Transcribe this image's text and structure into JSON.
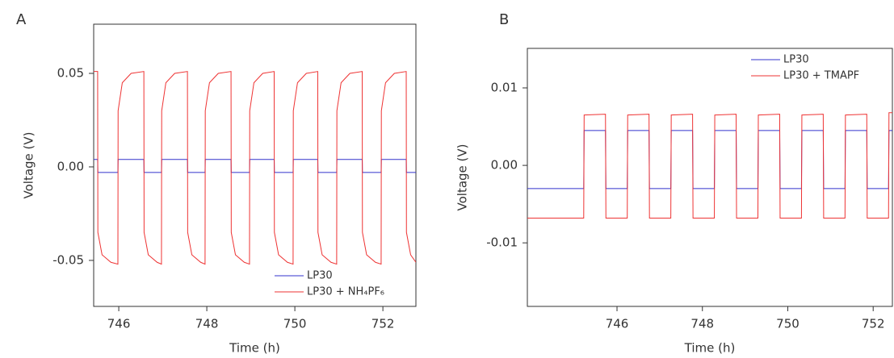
{
  "chart_data": [
    {
      "type": "line",
      "panel_label": "A",
      "xlabel": "Time (h)",
      "ylabel": "Voltage (V)",
      "xlim": [
        745.43,
        752.75
      ],
      "ylim": [
        -0.0746,
        0.0763
      ],
      "xticks": [
        746,
        748,
        750,
        752
      ],
      "yticks": [
        -0.05,
        {
          "value": 0,
          "label": "0.00"
        },
        0.05
      ],
      "legend": "lower right",
      "series": [
        {
          "name": "LP30",
          "color": "#3333cc",
          "x": [
            745.43,
            745.52,
            745.525,
            745.98,
            745.985,
            746.57,
            746.575,
            746.97,
            746.975,
            747.56,
            747.565,
            747.96,
            747.965,
            748.55,
            748.555,
            748.97,
            748.975,
            749.53,
            749.535,
            749.96,
            749.965,
            750.52,
            750.525,
            750.95,
            750.955,
            751.53,
            751.535,
            751.96,
            751.965,
            752.53,
            752.535,
            752.75
          ],
          "values": [
            0.004,
            0.004,
            -0.003,
            -0.003,
            0.004,
            0.004,
            -0.003,
            -0.003,
            0.004,
            0.004,
            -0.003,
            -0.003,
            0.004,
            0.004,
            -0.003,
            -0.003,
            0.004,
            0.004,
            -0.003,
            -0.003,
            0.004,
            0.004,
            -0.003,
            -0.003,
            0.004,
            0.004,
            -0.003,
            -0.003,
            0.004,
            0.004,
            -0.003,
            -0.003
          ]
        },
        {
          "name": "LP30 + NH₄PF₆",
          "color": "#ee3333",
          "x": [
            745.43,
            745.52,
            745.525,
            745.62,
            745.82,
            745.98,
            745.985,
            746.08,
            746.28,
            746.57,
            746.575,
            746.67,
            746.87,
            746.97,
            746.975,
            747.07,
            747.27,
            747.56,
            747.565,
            747.66,
            747.86,
            747.96,
            747.965,
            748.06,
            748.26,
            748.55,
            748.555,
            748.65,
            748.85,
            748.97,
            748.975,
            749.07,
            749.27,
            749.53,
            749.535,
            749.63,
            749.83,
            749.96,
            749.965,
            750.06,
            750.26,
            750.52,
            750.525,
            750.62,
            750.82,
            750.95,
            750.955,
            751.05,
            751.25,
            751.53,
            751.535,
            751.63,
            751.83,
            751.96,
            751.965,
            752.06,
            752.26,
            752.53,
            752.535,
            752.63,
            752.75
          ],
          "values": [
            0.051,
            0.051,
            -0.035,
            -0.047,
            -0.051,
            -0.052,
            0.03,
            0.045,
            0.05,
            0.051,
            -0.035,
            -0.047,
            -0.051,
            -0.052,
            0.03,
            0.045,
            0.05,
            0.051,
            -0.035,
            -0.047,
            -0.051,
            -0.052,
            0.03,
            0.045,
            0.05,
            0.051,
            -0.035,
            -0.047,
            -0.051,
            -0.052,
            0.03,
            0.045,
            0.05,
            0.051,
            -0.035,
            -0.047,
            -0.051,
            -0.052,
            0.03,
            0.045,
            0.05,
            0.051,
            -0.035,
            -0.047,
            -0.051,
            -0.052,
            0.03,
            0.045,
            0.05,
            0.051,
            -0.035,
            -0.047,
            -0.051,
            -0.052,
            0.03,
            0.045,
            0.05,
            0.051,
            -0.035,
            -0.047,
            -0.051
          ]
        }
      ]
    },
    {
      "type": "line",
      "panel_label": "B",
      "xlabel": "Time (h)",
      "ylabel": "Voltage (V)",
      "xlim": [
        743.9,
        752.45
      ],
      "ylim": [
        -0.0182,
        0.0151
      ],
      "xticks": [
        746,
        748,
        750,
        752
      ],
      "yticks": [
        -0.01,
        {
          "value": 0,
          "label": "0.00"
        },
        0.01
      ],
      "legend": "upper right",
      "series": [
        {
          "name": "LP30",
          "color": "#3333cc",
          "x": [
            743.9,
            745.22,
            745.23,
            745.73,
            745.74,
            746.24,
            746.25,
            746.75,
            746.76,
            747.26,
            747.27,
            747.77,
            747.78,
            748.28,
            748.29,
            748.79,
            748.8,
            749.3,
            749.31,
            749.81,
            749.82,
            750.32,
            750.33,
            750.83,
            750.84,
            751.34,
            751.35,
            751.85,
            751.86,
            752.36,
            752.37,
            752.45
          ],
          "values": [
            -0.003,
            -0.003,
            0.0045,
            0.0045,
            -0.003,
            -0.003,
            0.0045,
            0.0045,
            -0.003,
            -0.003,
            0.0045,
            0.0045,
            -0.003,
            -0.003,
            0.0045,
            0.0045,
            -0.003,
            -0.003,
            0.0045,
            0.0045,
            -0.003,
            -0.003,
            0.0045,
            0.0045,
            -0.003,
            -0.003,
            0.0045,
            0.0045,
            -0.003,
            -0.003,
            0.0045,
            0.0045
          ]
        },
        {
          "name": "LP30 + TMAPF",
          "color": "#ee3333",
          "x": [
            743.9,
            745.22,
            745.23,
            745.73,
            745.74,
            746.24,
            746.25,
            746.75,
            746.76,
            747.26,
            747.27,
            747.77,
            747.78,
            748.28,
            748.29,
            748.79,
            748.8,
            749.3,
            749.31,
            749.81,
            749.82,
            750.32,
            750.33,
            750.83,
            750.84,
            751.34,
            751.35,
            751.85,
            751.86,
            752.36,
            752.37,
            752.45
          ],
          "values": [
            -0.0068,
            -0.0068,
            0.0065,
            0.0066,
            -0.0068,
            -0.0068,
            0.0065,
            0.0066,
            -0.0068,
            -0.0068,
            0.0065,
            0.0066,
            -0.0068,
            -0.0068,
            0.0065,
            0.0066,
            -0.0068,
            -0.0068,
            0.0065,
            0.0066,
            -0.0068,
            -0.0068,
            0.0065,
            0.0066,
            -0.0068,
            -0.0068,
            0.0065,
            0.0066,
            -0.0068,
            -0.0068,
            0.0068,
            0.0068
          ]
        }
      ]
    }
  ]
}
